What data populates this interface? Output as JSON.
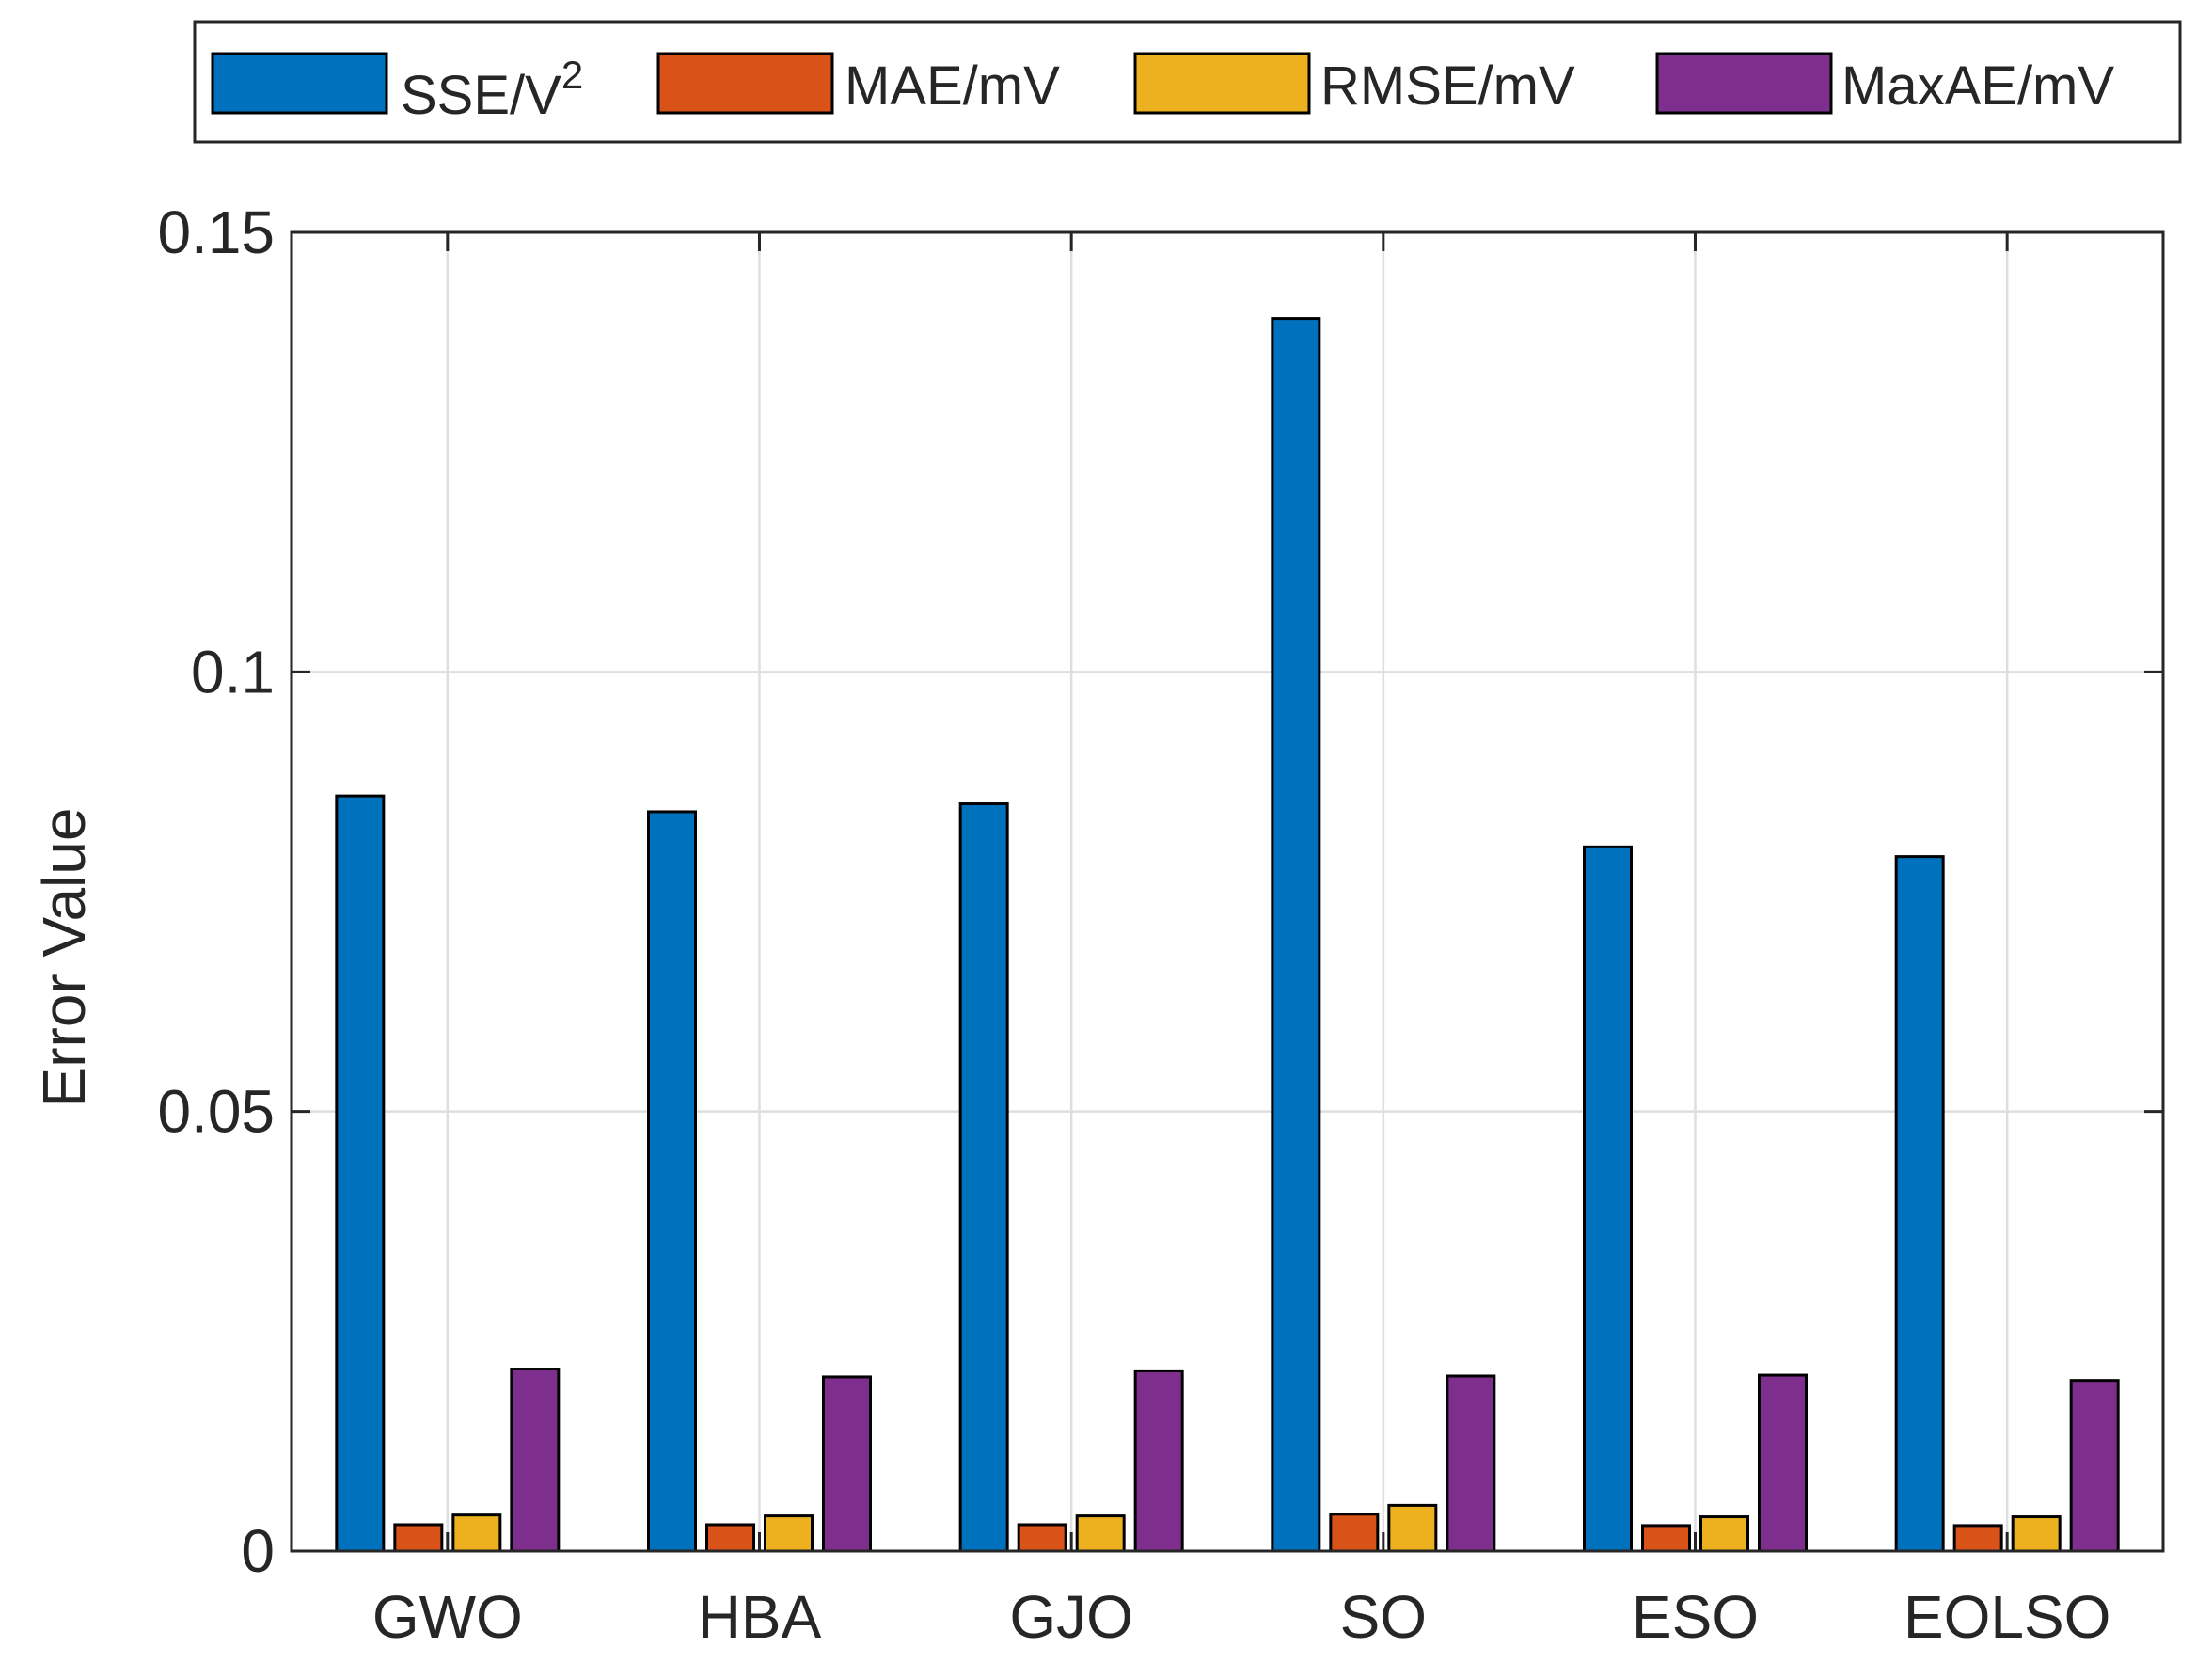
{
  "chart_data": {
    "type": "bar",
    "title": "",
    "xlabel": "",
    "ylabel": "Error Value",
    "ylim": [
      0,
      0.15
    ],
    "yticks": [
      0,
      0.05,
      0.1,
      0.15
    ],
    "ytick_labels": [
      "0",
      "0.05",
      "0.1",
      "0.15"
    ],
    "grid": true,
    "legend_position": "top, outside, horizontal",
    "categories": [
      "GWO",
      "HBA",
      "GJO",
      "SO",
      "ESO",
      "EOLSO"
    ],
    "series": [
      {
        "name": "SSE/V",
        "superscript": "2",
        "color": "#0072BD",
        "values": [
          0.0859,
          0.0841,
          0.085,
          0.1402,
          0.0801,
          0.079
        ]
      },
      {
        "name": "MAE/mV",
        "superscript": "",
        "color": "#D95319",
        "values": [
          0.003,
          0.003,
          0.003,
          0.0042,
          0.0029,
          0.0029
        ]
      },
      {
        "name": "RMSE/mV",
        "superscript": "",
        "color": "#EDB120",
        "values": [
          0.0041,
          0.004,
          0.004,
          0.0052,
          0.0039,
          0.0039
        ]
      },
      {
        "name": "MaxAE/mV",
        "superscript": "",
        "color": "#7E2F8E",
        "values": [
          0.0207,
          0.0198,
          0.0205,
          0.0199,
          0.02,
          0.0194
        ]
      }
    ]
  }
}
